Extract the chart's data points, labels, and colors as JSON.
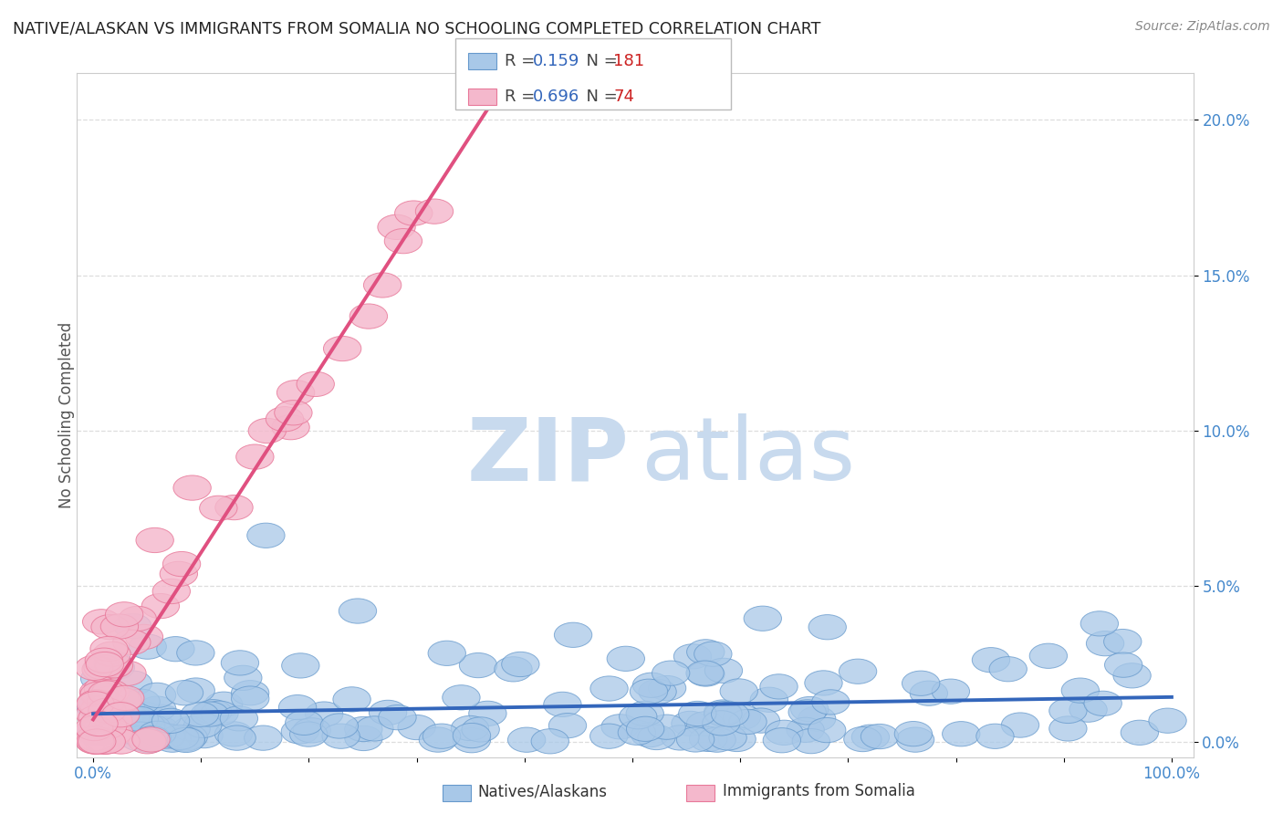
{
  "title": "NATIVE/ALASKAN VS IMMIGRANTS FROM SOMALIA NO SCHOOLING COMPLETED CORRELATION CHART",
  "source": "Source: ZipAtlas.com",
  "ylabel": "No Schooling Completed",
  "xlim": [
    0,
    100
  ],
  "ylim": [
    0,
    21
  ],
  "xtick_vals": [
    0,
    10,
    20,
    30,
    40,
    50,
    60,
    70,
    80,
    90,
    100
  ],
  "xtick_labels": [
    "0.0%",
    "",
    "",
    "",
    "",
    "",
    "",
    "",
    "",
    "",
    "100.0%"
  ],
  "ytick_vals": [
    0,
    5,
    10,
    15,
    20
  ],
  "ytick_labels": [
    "0.0%",
    "5.0%",
    "10.0%",
    "15.0%",
    "20.0%"
  ],
  "blue_color": "#a8c8e8",
  "blue_edge": "#6699cc",
  "pink_color": "#f4b8cc",
  "pink_edge": "#e87899",
  "blue_line_color": "#3366bb",
  "pink_line_color": "#e05080",
  "R_blue": 0.159,
  "N_blue": 181,
  "R_pink": 0.696,
  "N_pink": 74,
  "legend_blue": "Natives/Alaskans",
  "legend_pink": "Immigrants from Somalia",
  "title_color": "#222222",
  "source_color": "#888888",
  "tick_color": "#4488cc",
  "grid_color": "#dddddd",
  "ylabel_color": "#555555",
  "watermark_zip_color": "#c8daee",
  "watermark_atlas_color": "#c8daee"
}
